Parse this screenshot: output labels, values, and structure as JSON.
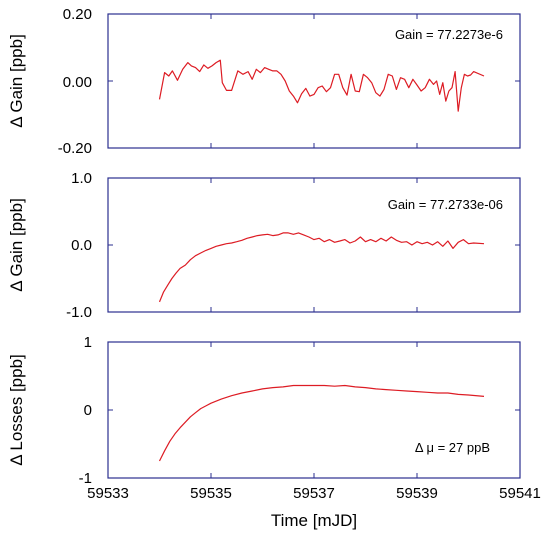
{
  "chart_data": [
    {
      "type": "line",
      "ylabel": "Δ Gain [ppb]",
      "ylim": [
        -0.2,
        0.2
      ],
      "yticks": [
        0.2,
        0.0,
        -0.2
      ],
      "ytick_labels": [
        "0.20",
        "0.00",
        "-0.20"
      ],
      "xlim": [
        59533,
        59541
      ],
      "annotation": "Gain = 77.2273e-6",
      "grid": false,
      "series": [
        {
          "color": "#dd1c24",
          "x": [
            59534.0,
            59534.1,
            59534.18,
            59534.25,
            59534.35,
            59534.45,
            59534.55,
            59534.62,
            59534.7,
            59534.78,
            59534.86,
            59534.94,
            59535.02,
            59535.1,
            59535.18,
            59535.22,
            59535.3,
            59535.4,
            59535.52,
            59535.62,
            59535.72,
            59535.8,
            59535.88,
            59535.96,
            59536.04,
            59536.12,
            59536.2,
            59536.28,
            59536.36,
            59536.44,
            59536.52,
            59536.6,
            59536.68,
            59536.76,
            59536.84,
            59536.92,
            59537.0,
            59537.08,
            59537.16,
            59537.24,
            59537.32,
            59537.4,
            59537.48,
            59537.56,
            59537.64,
            59537.72,
            59537.8,
            59537.88,
            59537.96,
            59538.04,
            59538.12,
            59538.2,
            59538.28,
            59538.36,
            59538.44,
            59538.52,
            59538.6,
            59538.68,
            59538.76,
            59538.84,
            59538.92,
            59539.0,
            59539.08,
            59539.16,
            59539.24,
            59539.32,
            59539.38,
            59539.44,
            59539.5,
            59539.56,
            59539.62,
            59539.68,
            59539.74,
            59539.8,
            59539.86,
            59539.92,
            59539.98,
            59540.04,
            59540.1,
            59540.3
          ],
          "y": [
            -0.055,
            0.025,
            0.015,
            0.03,
            0.002,
            0.035,
            0.055,
            0.045,
            0.04,
            0.028,
            0.048,
            0.038,
            0.045,
            0.055,
            0.062,
            -0.005,
            -0.028,
            -0.028,
            0.03,
            0.02,
            0.028,
            0.005,
            0.035,
            0.025,
            0.04,
            0.035,
            0.03,
            0.03,
            0.02,
            0.0,
            -0.03,
            -0.045,
            -0.065,
            -0.038,
            -0.022,
            -0.045,
            -0.04,
            -0.02,
            -0.015,
            -0.032,
            -0.02,
            0.02,
            0.02,
            -0.02,
            -0.042,
            0.02,
            -0.03,
            -0.032,
            0.02,
            0.01,
            -0.005,
            -0.035,
            -0.045,
            -0.025,
            0.02,
            0.015,
            -0.025,
            0.01,
            0.005,
            -0.02,
            0.005,
            -0.012,
            -0.03,
            -0.02,
            0.005,
            -0.01,
            0.0,
            -0.04,
            -0.005,
            -0.06,
            -0.03,
            -0.02,
            0.028,
            -0.09,
            -0.02,
            0.02,
            0.015,
            0.018,
            0.028,
            0.015
          ]
        }
      ]
    },
    {
      "type": "line",
      "ylabel": "Δ Gain [ppb]",
      "ylim": [
        -1.0,
        1.0
      ],
      "yticks": [
        1.0,
        0.0,
        -1.0
      ],
      "ytick_labels": [
        "1.0",
        "0.0",
        "-1.0"
      ],
      "xlim": [
        59533,
        59541
      ],
      "annotation": "Gain = 77.2733e-06",
      "grid": false,
      "series": [
        {
          "color": "#dd1c24",
          "x": [
            59534.0,
            59534.08,
            59534.16,
            59534.24,
            59534.32,
            59534.4,
            59534.5,
            59534.6,
            59534.7,
            59534.8,
            59534.9,
            59535.0,
            59535.1,
            59535.2,
            59535.3,
            59535.4,
            59535.5,
            59535.6,
            59535.7,
            59535.8,
            59535.9,
            59536.0,
            59536.1,
            59536.2,
            59536.3,
            59536.4,
            59536.5,
            59536.6,
            59536.7,
            59536.8,
            59536.9,
            59537.0,
            59537.1,
            59537.2,
            59537.3,
            59537.4,
            59537.5,
            59537.6,
            59537.7,
            59537.8,
            59537.9,
            59538.0,
            59538.1,
            59538.2,
            59538.3,
            59538.4,
            59538.5,
            59538.6,
            59538.7,
            59538.8,
            59538.9,
            59539.0,
            59539.1,
            59539.2,
            59539.3,
            59539.4,
            59539.5,
            59539.6,
            59539.7,
            59539.8,
            59539.9,
            59540.0,
            59540.1,
            59540.3
          ],
          "y": [
            -0.85,
            -0.7,
            -0.6,
            -0.5,
            -0.42,
            -0.35,
            -0.3,
            -0.22,
            -0.16,
            -0.12,
            -0.08,
            -0.05,
            -0.02,
            0.0,
            0.02,
            0.03,
            0.05,
            0.07,
            0.1,
            0.12,
            0.14,
            0.15,
            0.16,
            0.14,
            0.15,
            0.18,
            0.18,
            0.16,
            0.18,
            0.15,
            0.12,
            0.08,
            0.1,
            0.05,
            0.08,
            0.04,
            0.06,
            0.08,
            0.03,
            0.06,
            0.12,
            0.05,
            0.08,
            0.05,
            0.1,
            0.06,
            0.12,
            0.07,
            0.04,
            0.05,
            0.0,
            0.05,
            0.02,
            0.04,
            0.0,
            0.05,
            -0.02,
            0.06,
            -0.05,
            0.04,
            0.08,
            0.02,
            0.03,
            0.02
          ]
        }
      ]
    },
    {
      "type": "line",
      "xlabel": "Time [mJD]",
      "ylabel": "Δ Losses [ppb]",
      "ylim": [
        -1,
        1
      ],
      "yticks": [
        1,
        0,
        -1
      ],
      "ytick_labels": [
        "1",
        "0",
        "-1"
      ],
      "xlim": [
        59533,
        59541
      ],
      "xticks": [
        59533,
        59535,
        59537,
        59539,
        59541
      ],
      "xtick_labels": [
        "59533",
        "59535",
        "59537",
        "59539",
        "59541"
      ],
      "annotation": "Δ μ = 27 ppB",
      "grid": false,
      "series": [
        {
          "color": "#dd1c24",
          "x": [
            59534.0,
            59534.1,
            59534.2,
            59534.3,
            59534.4,
            59534.5,
            59534.6,
            59534.7,
            59534.8,
            59534.9,
            59535.0,
            59535.2,
            59535.4,
            59535.6,
            59535.8,
            59536.0,
            59536.2,
            59536.4,
            59536.6,
            59536.8,
            59537.0,
            59537.2,
            59537.4,
            59537.6,
            59537.8,
            59538.0,
            59538.2,
            59538.4,
            59538.6,
            59538.8,
            59539.0,
            59539.2,
            59539.4,
            59539.6,
            59539.8,
            59540.0,
            59540.3
          ],
          "y": [
            -0.75,
            -0.6,
            -0.46,
            -0.35,
            -0.26,
            -0.18,
            -0.1,
            -0.04,
            0.02,
            0.06,
            0.1,
            0.16,
            0.21,
            0.25,
            0.28,
            0.31,
            0.33,
            0.34,
            0.36,
            0.36,
            0.36,
            0.36,
            0.35,
            0.36,
            0.34,
            0.33,
            0.31,
            0.3,
            0.29,
            0.28,
            0.27,
            0.26,
            0.25,
            0.25,
            0.23,
            0.22,
            0.2
          ]
        }
      ]
    }
  ]
}
